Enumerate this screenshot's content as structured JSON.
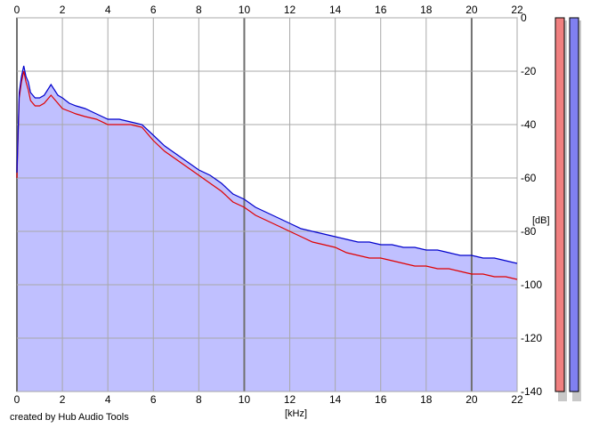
{
  "app": {
    "credit": "created by Hub Audio Tools"
  },
  "chart_data": {
    "type": "area",
    "xlabel": "[kHz]",
    "ylabel": "[dB]",
    "xlim": [
      0,
      22
    ],
    "ylim": [
      -140,
      0
    ],
    "x_ticks": [
      "0",
      "2",
      "4",
      "6",
      "8",
      "10",
      "12",
      "14",
      "16",
      "18",
      "20",
      "22"
    ],
    "y_ticks": [
      "0",
      "-20",
      "-40",
      "-60",
      "-80",
      "-100",
      "-120",
      "-140"
    ],
    "grid": true,
    "plot_background": "#c0c0ff",
    "series": [
      {
        "color": "#0000cc",
        "x": [
          0,
          0.1,
          0.2,
          0.3,
          0.4,
          0.5,
          0.6,
          0.8,
          1.0,
          1.2,
          1.5,
          1.8,
          2.0,
          2.3,
          2.6,
          3.0,
          3.5,
          4.0,
          4.5,
          5.0,
          5.5,
          6.0,
          6.5,
          7.0,
          7.5,
          8.0,
          8.5,
          9.0,
          9.5,
          10.0,
          10.5,
          11.0,
          11.5,
          12.0,
          12.5,
          13.0,
          13.5,
          14.0,
          14.5,
          15.0,
          15.5,
          16.0,
          16.5,
          17.0,
          17.5,
          18.0,
          18.5,
          19.0,
          19.5,
          20.0,
          20.5,
          21.0,
          21.5,
          22.0
        ],
        "values": [
          -58,
          -28,
          -22,
          -18,
          -22,
          -24,
          -28,
          -30,
          -30,
          -29,
          -25,
          -29,
          -30,
          -32,
          -33,
          -34,
          -36,
          -38,
          -38,
          -39,
          -40,
          -44,
          -48,
          -51,
          -54,
          -57,
          -59,
          -62,
          -66,
          -68,
          -71,
          -73,
          -75,
          -77,
          -79,
          -80,
          -81,
          -82,
          -83,
          -84,
          -84,
          -85,
          -85,
          -86,
          -86,
          -87,
          -87,
          -88,
          -89,
          -89,
          -90,
          -90,
          -91,
          -92
        ]
      },
      {
        "color": "#e00000",
        "x": [
          0,
          0.1,
          0.2,
          0.3,
          0.4,
          0.5,
          0.6,
          0.8,
          1.0,
          1.2,
          1.5,
          1.8,
          2.0,
          2.3,
          2.6,
          3.0,
          3.5,
          4.0,
          4.5,
          5.0,
          5.5,
          6.0,
          6.5,
          7.0,
          7.5,
          8.0,
          8.5,
          9.0,
          9.5,
          10.0,
          10.5,
          11.0,
          11.5,
          12.0,
          12.5,
          13.0,
          13.5,
          14.0,
          14.5,
          15.0,
          15.5,
          16.0,
          16.5,
          17.0,
          17.5,
          18.0,
          18.5,
          19.0,
          19.5,
          20.0,
          20.5,
          21.0,
          21.5,
          22.0
        ],
        "values": [
          -60,
          -30,
          -24,
          -20,
          -24,
          -27,
          -31,
          -33,
          -33,
          -32,
          -29,
          -32,
          -34,
          -35,
          -36,
          -37,
          -38,
          -40,
          -40,
          -40,
          -41,
          -46,
          -50,
          -53,
          -56,
          -59,
          -62,
          -65,
          -69,
          -71,
          -74,
          -76,
          -78,
          -80,
          -82,
          -84,
          -85,
          -86,
          -88,
          -89,
          -90,
          -90,
          -91,
          -92,
          -93,
          -93,
          -94,
          -94,
          -95,
          -96,
          -96,
          -97,
          -97,
          -98
        ]
      }
    ],
    "meters": [
      {
        "color": "#f08080"
      },
      {
        "color": "#8080f0"
      }
    ]
  }
}
